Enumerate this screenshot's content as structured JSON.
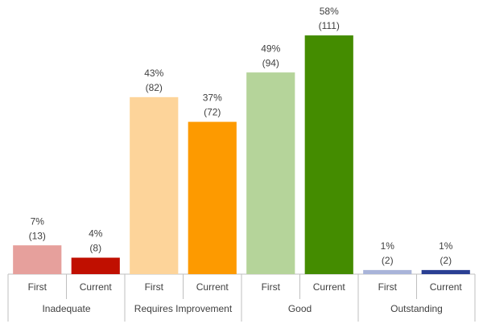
{
  "chart_data": {
    "type": "bar",
    "groups": [
      {
        "name": "Inadequate",
        "categories": [
          "First",
          "Current"
        ],
        "values": [
          7,
          4
        ],
        "value_labels": [
          "7%",
          "4%"
        ],
        "count_labels": [
          "(13)",
          "(8)"
        ],
        "colors": [
          "#e6a09c",
          "#c00f00"
        ]
      },
      {
        "name": "Requires Improvement",
        "categories": [
          "First",
          "Current"
        ],
        "values": [
          43,
          37
        ],
        "value_labels": [
          "43%",
          "37%"
        ],
        "count_labels": [
          "(82)",
          "(72)"
        ],
        "colors": [
          "#fdd49a",
          "#fd9a00"
        ]
      },
      {
        "name": "Good",
        "categories": [
          "First",
          "Current"
        ],
        "values": [
          49,
          58
        ],
        "value_labels": [
          "49%",
          "58%"
        ],
        "count_labels": [
          "(94)",
          "(111)"
        ],
        "colors": [
          "#b5d49a",
          "#448c00"
        ]
      },
      {
        "name": "Outstanding",
        "categories": [
          "First",
          "Current"
        ],
        "values": [
          1,
          1
        ],
        "value_labels": [
          "1%",
          "1%"
        ],
        "count_labels": [
          "(2)",
          "(2)"
        ],
        "colors": [
          "#a9b4d9",
          "#2a3f93"
        ]
      }
    ]
  }
}
